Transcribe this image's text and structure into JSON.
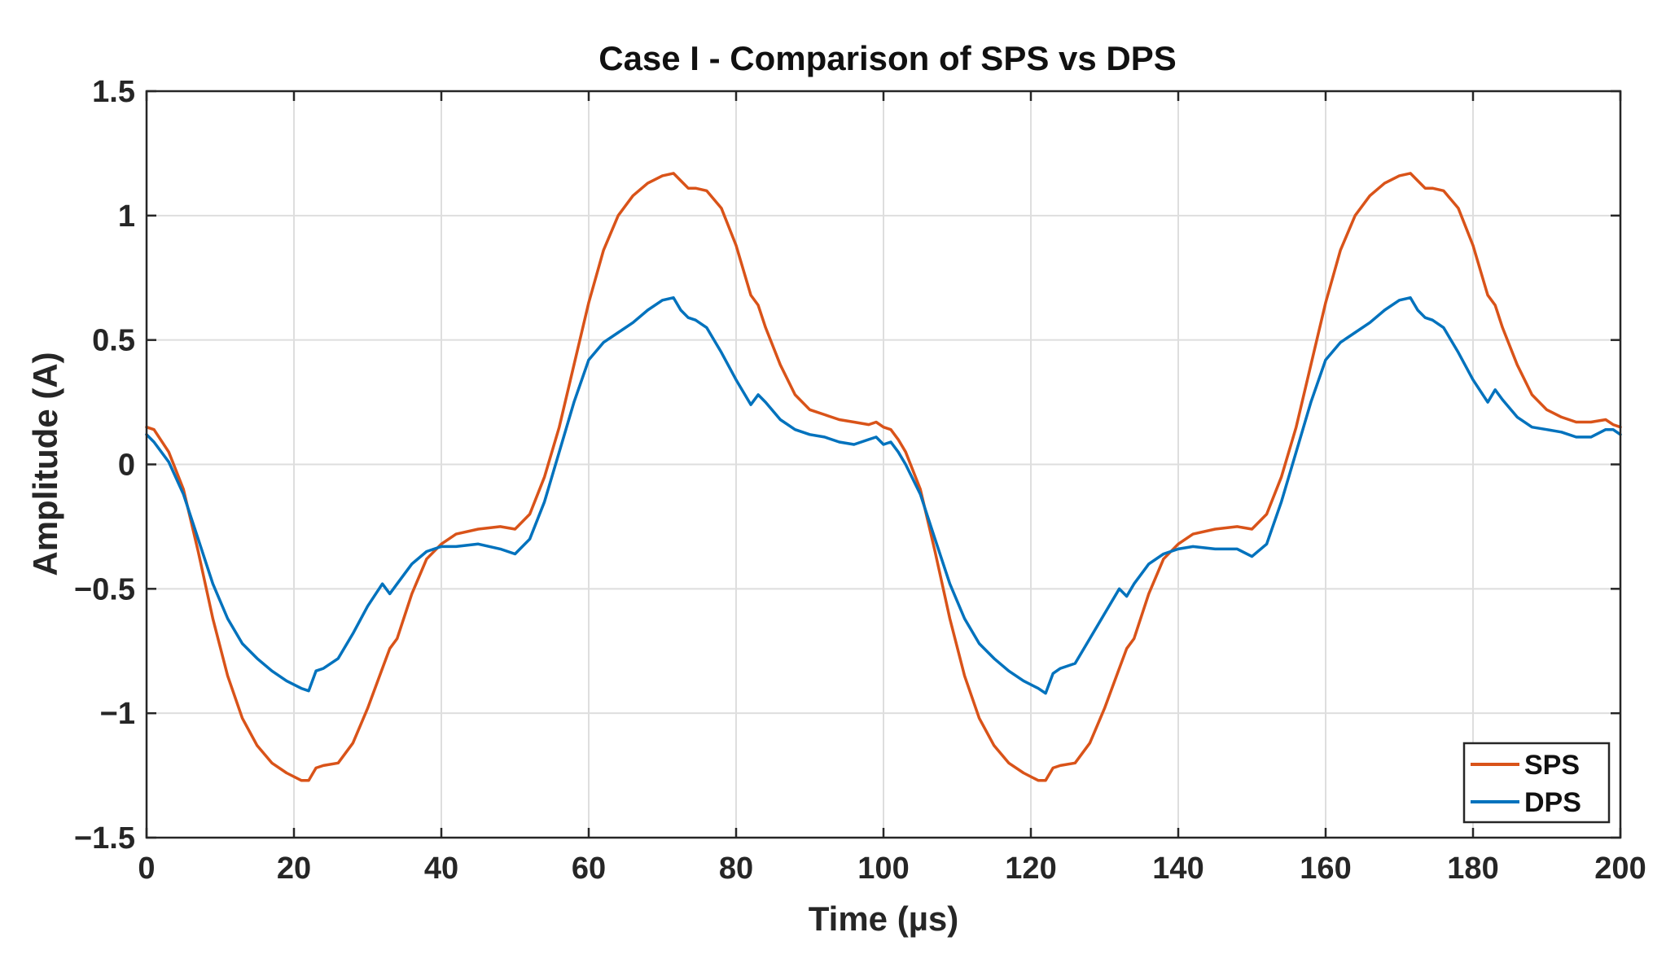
{
  "chart_data": {
    "type": "line",
    "title": "Case I - Comparison of SPS vs DPS",
    "xlabel": "Time (µs)",
    "ylabel": "Amplitude (A)",
    "xlim": [
      0,
      200
    ],
    "ylim": [
      -1.5,
      1.5
    ],
    "grid": true,
    "legend_position": "bottom-right",
    "x_ticks": [
      0,
      20,
      40,
      60,
      80,
      100,
      120,
      140,
      160,
      180,
      200
    ],
    "x_tick_labels": [
      "0",
      "20",
      "40",
      "60",
      "80",
      "100",
      "120",
      "140",
      "160",
      "180",
      "200"
    ],
    "y_ticks": [
      1.5,
      1,
      0.5,
      0,
      -0.5,
      -1,
      -1.5
    ],
    "y_tick_labels": [
      "1.5",
      "1",
      "0.5",
      "0",
      "−0.5",
      "−1",
      "−1.5"
    ],
    "series": [
      {
        "name": "SPS",
        "color": "#D95319",
        "x": [
          0,
          1,
          3,
          5,
          7,
          9,
          11,
          13,
          15,
          17,
          19,
          21,
          22,
          23,
          24,
          26,
          28,
          30,
          32,
          33,
          34,
          36,
          38,
          40,
          42,
          45,
          48,
          50,
          52,
          54,
          56,
          58,
          60,
          62,
          64,
          66,
          68,
          70,
          71.5,
          72.5,
          73.5,
          74.5,
          76,
          78,
          80,
          82,
          83,
          84,
          86,
          88,
          90,
          92,
          94,
          96,
          98,
          99,
          100,
          101,
          102,
          103,
          105,
          107,
          109,
          111,
          113,
          115,
          117,
          119,
          121,
          122,
          123,
          124,
          126,
          128,
          130,
          132,
          133,
          134,
          136,
          138,
          140,
          142,
          145,
          148,
          150,
          152,
          154,
          156,
          158,
          160,
          162,
          164,
          166,
          168,
          170,
          171.5,
          172.5,
          173.5,
          174.5,
          176,
          178,
          180,
          182,
          183,
          184,
          186,
          188,
          190,
          192,
          194,
          196,
          198,
          199,
          200
        ],
        "y": [
          0.15,
          0.14,
          0.05,
          -0.1,
          -0.35,
          -0.62,
          -0.85,
          -1.02,
          -1.13,
          -1.2,
          -1.24,
          -1.27,
          -1.27,
          -1.22,
          -1.21,
          -1.2,
          -1.12,
          -0.98,
          -0.82,
          -0.74,
          -0.7,
          -0.52,
          -0.38,
          -0.32,
          -0.28,
          -0.26,
          -0.25,
          -0.26,
          -0.2,
          -0.05,
          0.15,
          0.4,
          0.65,
          0.86,
          1.0,
          1.08,
          1.13,
          1.16,
          1.17,
          1.14,
          1.11,
          1.11,
          1.1,
          1.03,
          0.88,
          0.68,
          0.64,
          0.55,
          0.4,
          0.28,
          0.22,
          0.2,
          0.18,
          0.17,
          0.16,
          0.17,
          0.15,
          0.14,
          0.1,
          0.05,
          -0.1,
          -0.35,
          -0.62,
          -0.85,
          -1.02,
          -1.13,
          -1.2,
          -1.24,
          -1.27,
          -1.27,
          -1.22,
          -1.21,
          -1.2,
          -1.12,
          -0.98,
          -0.82,
          -0.74,
          -0.7,
          -0.52,
          -0.38,
          -0.32,
          -0.28,
          -0.26,
          -0.25,
          -0.26,
          -0.2,
          -0.05,
          0.15,
          0.4,
          0.65,
          0.86,
          1.0,
          1.08,
          1.13,
          1.16,
          1.17,
          1.14,
          1.11,
          1.11,
          1.1,
          1.03,
          0.88,
          0.68,
          0.64,
          0.55,
          0.4,
          0.28,
          0.22,
          0.19,
          0.17,
          0.17,
          0.18,
          0.16,
          0.15
        ]
      },
      {
        "name": "DPS",
        "color": "#0072BD",
        "x": [
          0,
          1,
          3,
          5,
          7,
          9,
          11,
          13,
          15,
          17,
          19,
          21,
          22,
          23,
          24,
          26,
          28,
          30,
          32,
          33,
          34,
          36,
          38,
          40,
          42,
          45,
          48,
          50,
          52,
          54,
          56,
          58,
          60,
          62,
          64,
          66,
          68,
          70,
          71.5,
          72.5,
          73.5,
          74.5,
          76,
          78,
          80,
          82,
          83,
          84,
          86,
          88,
          90,
          92,
          94,
          96,
          98,
          99,
          100,
          101,
          102,
          103,
          105,
          107,
          109,
          111,
          113,
          115,
          117,
          119,
          121,
          122,
          123,
          124,
          126,
          128,
          130,
          132,
          133,
          134,
          136,
          138,
          140,
          142,
          145,
          148,
          150,
          152,
          154,
          156,
          158,
          160,
          162,
          164,
          166,
          168,
          170,
          171.5,
          172.5,
          173.5,
          174.5,
          176,
          178,
          180,
          182,
          183,
          184,
          186,
          188,
          190,
          192,
          194,
          196,
          198,
          199,
          200
        ],
        "y": [
          0.12,
          0.09,
          0.01,
          -0.12,
          -0.3,
          -0.48,
          -0.62,
          -0.72,
          -0.78,
          -0.83,
          -0.87,
          -0.9,
          -0.91,
          -0.83,
          -0.82,
          -0.78,
          -0.68,
          -0.57,
          -0.48,
          -0.52,
          -0.48,
          -0.4,
          -0.35,
          -0.33,
          -0.33,
          -0.32,
          -0.34,
          -0.36,
          -0.3,
          -0.15,
          0.05,
          0.25,
          0.42,
          0.49,
          0.53,
          0.57,
          0.62,
          0.66,
          0.67,
          0.62,
          0.59,
          0.58,
          0.55,
          0.45,
          0.34,
          0.24,
          0.28,
          0.25,
          0.18,
          0.14,
          0.12,
          0.11,
          0.09,
          0.08,
          0.1,
          0.11,
          0.08,
          0.09,
          0.05,
          0.0,
          -0.12,
          -0.3,
          -0.48,
          -0.62,
          -0.72,
          -0.78,
          -0.83,
          -0.87,
          -0.9,
          -0.92,
          -0.84,
          -0.82,
          -0.8,
          -0.7,
          -0.6,
          -0.5,
          -0.53,
          -0.48,
          -0.4,
          -0.36,
          -0.34,
          -0.33,
          -0.34,
          -0.34,
          -0.37,
          -0.32,
          -0.15,
          0.05,
          0.25,
          0.42,
          0.49,
          0.53,
          0.57,
          0.62,
          0.66,
          0.67,
          0.62,
          0.59,
          0.58,
          0.55,
          0.45,
          0.34,
          0.25,
          0.3,
          0.26,
          0.19,
          0.15,
          0.14,
          0.13,
          0.11,
          0.11,
          0.14,
          0.14,
          0.12
        ]
      }
    ]
  }
}
